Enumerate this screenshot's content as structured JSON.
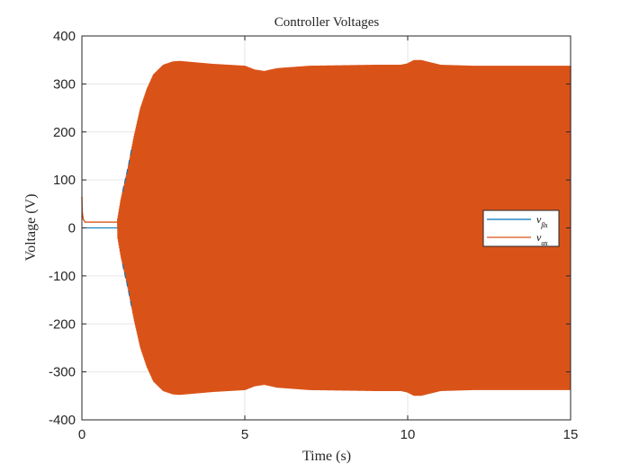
{
  "chart_data": {
    "type": "line",
    "title": "Controller Voltages",
    "xlabel": "Time (s)",
    "ylabel": "Voltage (V)",
    "xlim": [
      0,
      15
    ],
    "ylim": [
      -400,
      400
    ],
    "xticks": [
      0,
      5,
      10,
      15
    ],
    "yticks": [
      400,
      300,
      200,
      100,
      0,
      -100,
      -200,
      -300,
      -400
    ],
    "grid": true,
    "legend_position": "right",
    "series": [
      {
        "name": "vβs",
        "legend_main": "v",
        "legend_sub": "βs",
        "color": "#0072BD",
        "pre_oscillation_value": 0,
        "oscillation_start_time": 1.1
      },
      {
        "name": "vαs",
        "legend_main": "v",
        "legend_sub": "αs",
        "color": "#D95319",
        "initial_value": 65,
        "pre_oscillation_value": 12,
        "oscillation_start_time": 1.1
      }
    ],
    "envelope": {
      "t": [
        1.1,
        1.2,
        1.4,
        1.6,
        1.8,
        2.0,
        2.2,
        2.5,
        2.8,
        3.0,
        3.5,
        4.0,
        4.5,
        5.0,
        5.3,
        5.6,
        6.0,
        7.0,
        8.0,
        9.0,
        9.8,
        10.0,
        10.2,
        10.4,
        10.7,
        11.0,
        12.0,
        13.0,
        14.0,
        15.0
      ],
      "amplitude": [
        20,
        60,
        120,
        190,
        250,
        290,
        320,
        340,
        347,
        348,
        345,
        342,
        340,
        338,
        330,
        327,
        333,
        338,
        339,
        340,
        340,
        343,
        350,
        350,
        345,
        340,
        338,
        338,
        338,
        338
      ]
    }
  }
}
